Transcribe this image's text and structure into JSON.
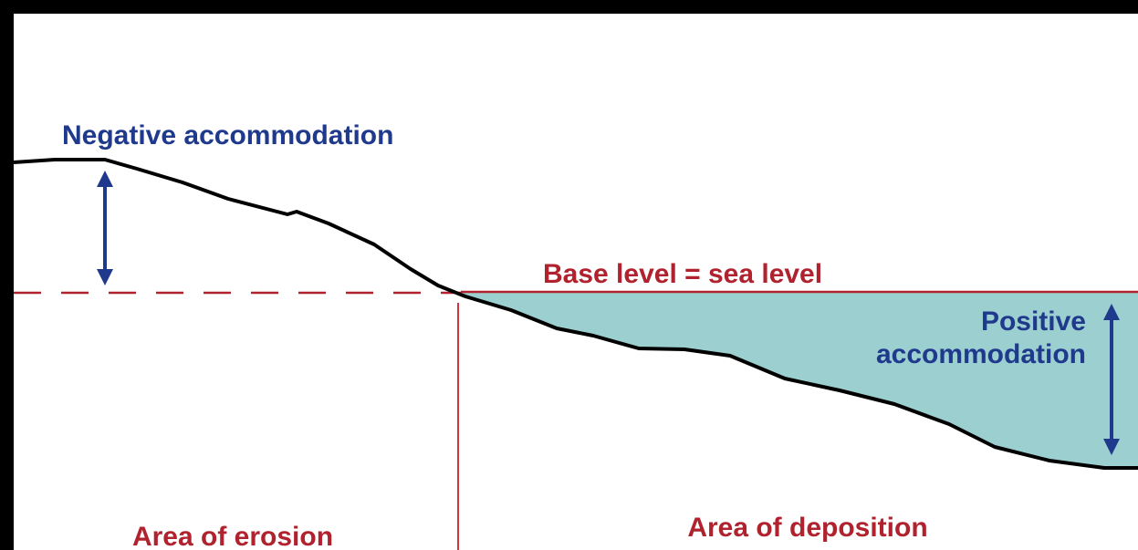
{
  "labels": {
    "negative": "Negative accommodation",
    "base_level": "Base level = sea level",
    "positive": [
      "Positive",
      "accommodation"
    ],
    "erosion": "Area of erosion",
    "deposition": "Area of deposition"
  }
}
